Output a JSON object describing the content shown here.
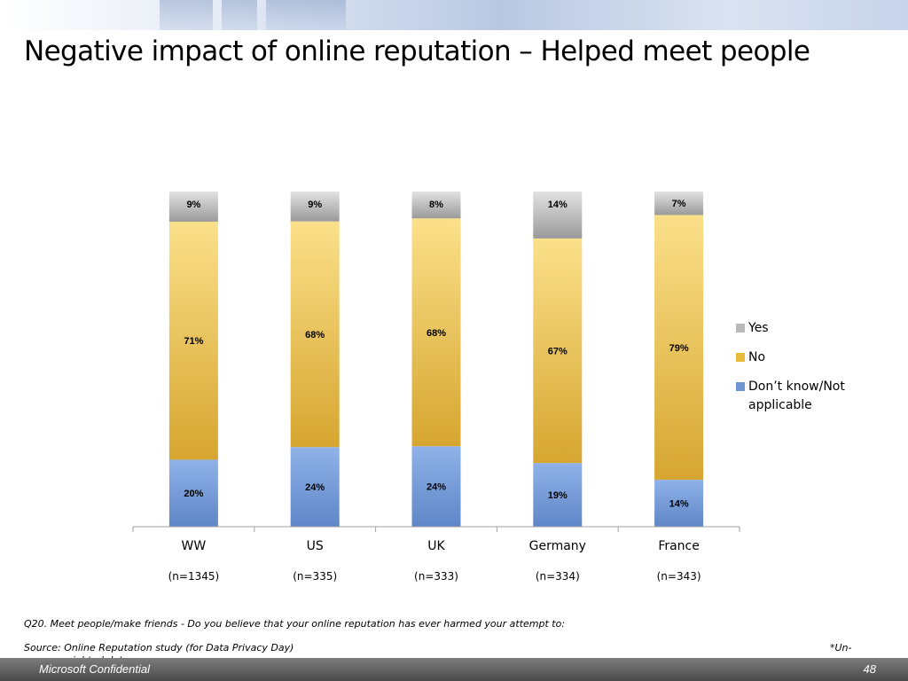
{
  "title": "Negative impact of online reputation – Helped meet people",
  "chart_data": {
    "type": "bar",
    "stacked": true,
    "percent": true,
    "categories": [
      "WW",
      "US",
      "UK",
      "Germany",
      "France"
    ],
    "sample_sizes": [
      "(n=1345)",
      "(n=335)",
      "(n=333)",
      "(n=334)",
      "(n=343)"
    ],
    "series": [
      {
        "name": "Don’t know/Not applicable",
        "values": [
          20,
          24,
          24,
          19,
          14
        ],
        "color": "#6e95d4"
      },
      {
        "name": "No",
        "values": [
          71,
          68,
          68,
          67,
          79
        ],
        "color": "#e8bb3c"
      },
      {
        "name": "Yes",
        "values": [
          9,
          9,
          8,
          14,
          7
        ],
        "color": "#b5b5b5"
      }
    ],
    "ylim": [
      0,
      100
    ],
    "legend_position": "right",
    "grid": false
  },
  "legend": {
    "items": [
      {
        "label": "Yes",
        "color": "#b8b8b8"
      },
      {
        "label": "No",
        "color": "#e8bb3c"
      },
      {
        "label": "Don’t know/Not applicable",
        "color": "#6e95d4"
      }
    ]
  },
  "footer": {
    "question": "Q20. Meet people/make friends - Do you believe that your online reputation has ever harmed your attempt to:",
    "source": "Source: Online Reputation study (for Data Privacy Day)",
    "note_part1": "*Un-",
    "note_part2": "weighted data",
    "confidential": "Microsoft Confidential",
    "page_number": "48"
  }
}
